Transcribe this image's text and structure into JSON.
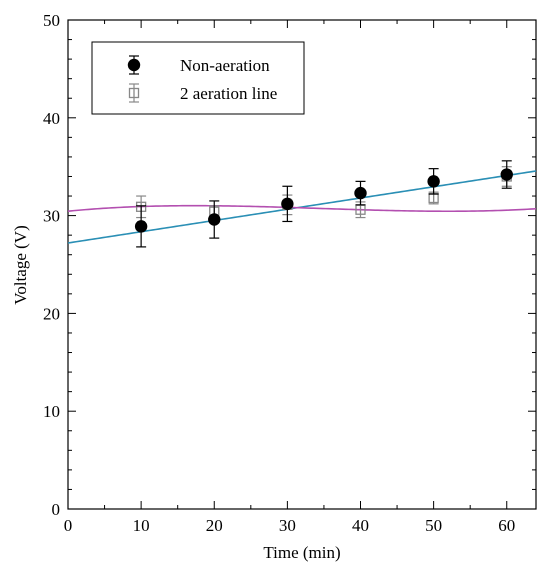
{
  "chart_data": {
    "type": "scatter",
    "title": "",
    "xlabel": "Time (min)",
    "ylabel": "Voltage (V)",
    "xlim": [
      0,
      64
    ],
    "ylim": [
      0,
      50
    ],
    "xticks": [
      "0",
      "10",
      "20",
      "30",
      "40",
      "50",
      "60"
    ],
    "yticks": [
      "0",
      "10",
      "20",
      "30",
      "40",
      "50"
    ],
    "grid": false,
    "legend_position": "top-left",
    "series": [
      {
        "name": "Non-aeration",
        "marker": "filled-circle",
        "color": "#000000",
        "x": [
          10,
          20,
          30,
          40,
          50,
          60
        ],
        "y": [
          28.9,
          29.6,
          31.2,
          32.3,
          33.5,
          34.2
        ],
        "err": [
          2.1,
          1.9,
          1.8,
          1.2,
          1.3,
          1.4
        ]
      },
      {
        "name": "2 aeration line",
        "marker": "open-square",
        "color": "#888888",
        "x": [
          10,
          20,
          30,
          40,
          50,
          60
        ],
        "y": [
          30.9,
          30.4,
          31.1,
          30.6,
          31.8,
          34.0
        ],
        "err": [
          1.1,
          0.6,
          1.0,
          0.8,
          0.6,
          1.0
        ]
      }
    ],
    "fits": [
      {
        "series": "Non-aeration",
        "kind": "linear",
        "color": "#2a8fb5",
        "intercept": 27.2,
        "slope": 0.115
      },
      {
        "series": "2 aeration line",
        "kind": "cubic",
        "color": "#b34fb0",
        "coefficients": [
          30.45,
          0.0734,
          -0.002833,
          2.73e-05
        ]
      }
    ]
  }
}
